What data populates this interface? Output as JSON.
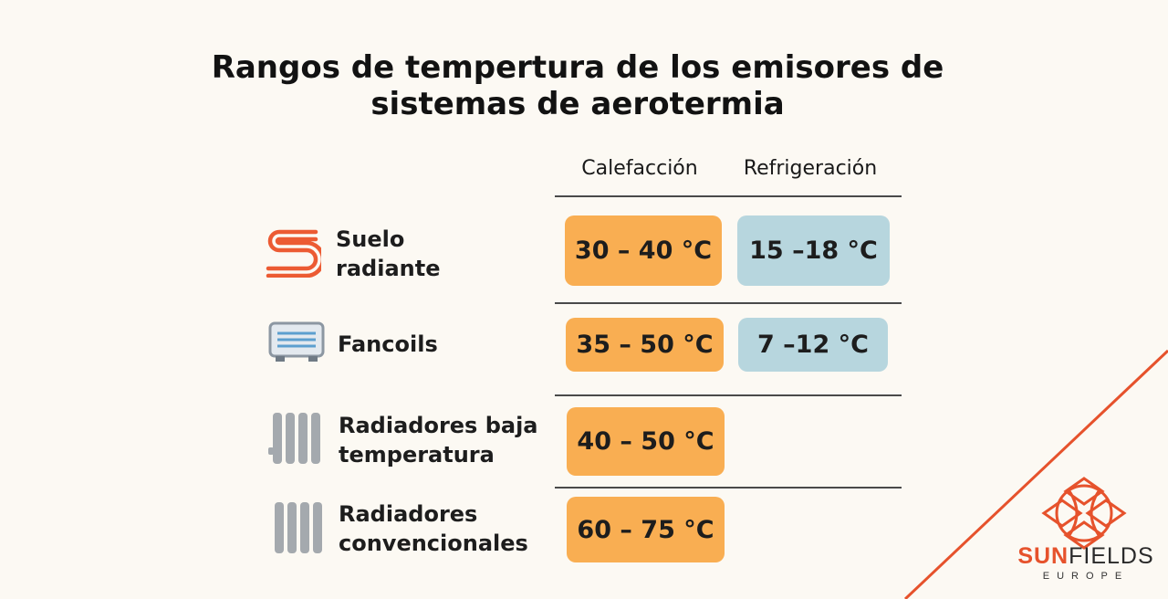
{
  "title_line1": "Rangos de tempertura de los emisores de",
  "title_line2": "sistemas de aerotermia",
  "columns": {
    "heating": "Calefacción",
    "cooling": "Refrigeración"
  },
  "rows": [
    {
      "label_line1": "Suelo",
      "label_line2": "radiante",
      "icon": "underfloor-heating-icon",
      "heating": "30 – 40 °C",
      "cooling": "15 –18 °C"
    },
    {
      "label_line1": "Fancoils",
      "label_line2": "",
      "icon": "fancoil-icon",
      "heating": "35 – 50 °C",
      "cooling": "7 –12 °C"
    },
    {
      "label_line1": "Radiadores baja",
      "label_line2": "temperatura",
      "icon": "low-temp-radiator-icon",
      "heating": "40 – 50 °C",
      "cooling": ""
    },
    {
      "label_line1": "Radiadores",
      "label_line2": "convencionales",
      "icon": "radiator-icon",
      "heating": "60 – 75 °C",
      "cooling": ""
    }
  ],
  "brand": {
    "name_part1": "SUN",
    "name_part2": "FIELDS",
    "subtitle": "EUROPE"
  },
  "colors": {
    "heating": "#f9ae52",
    "cooling": "#b7d6de",
    "accent": "#e6522c",
    "background": "#fcf9f3"
  }
}
